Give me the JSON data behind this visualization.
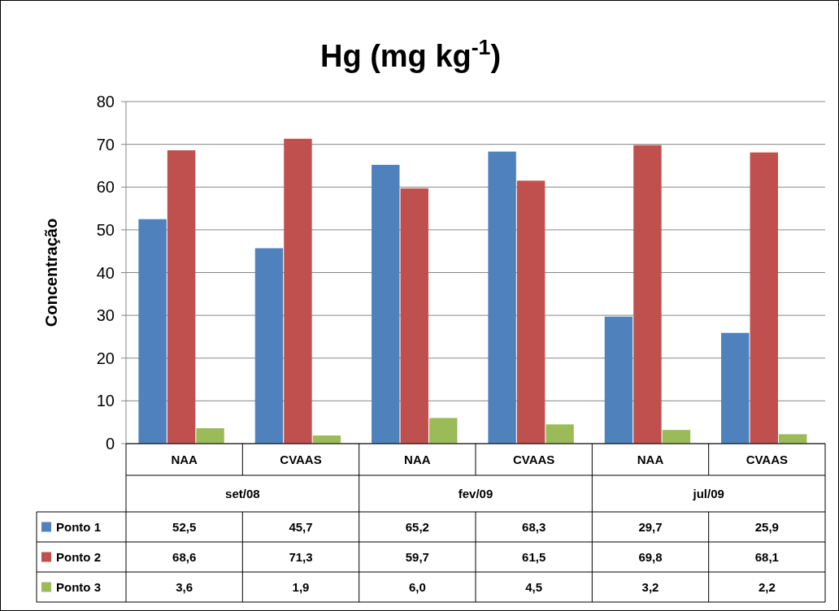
{
  "chart_data": {
    "type": "bar",
    "title": "Hg (mg kg$^{-1}$)",
    "ylabel": "Concentração",
    "categories": [
      "NAA",
      "CVAAS",
      "NAA",
      "CVAAS",
      "NAA",
      "CVAAS"
    ],
    "annotations": [
      "set/08",
      "fev/09",
      "jul/09"
    ],
    "series": [
      {
        "name": "Ponto 1",
        "color": "#4f81bd",
        "values": [
          52.5,
          45.7,
          65.2,
          68.3,
          29.7,
          25.9
        ],
        "value_labels": [
          "52,5",
          "45,7",
          "65,2",
          "68,3",
          "29,7",
          "25,9"
        ]
      },
      {
        "name": "Ponto 2",
        "color": "#c0504d",
        "values": [
          68.6,
          71.3,
          59.7,
          61.5,
          69.8,
          68.1
        ],
        "value_labels": [
          "68,6",
          "71,3",
          "59,7",
          "61,5",
          "69,8",
          "68,1"
        ]
      },
      {
        "name": "Ponto 3",
        "color": "#9bbb59",
        "values": [
          3.6,
          1.9,
          6.0,
          4.5,
          3.2,
          2.2
        ],
        "value_labels": [
          "3,6",
          "1,9",
          "6,0",
          "4,5",
          "3,2",
          "2,2"
        ]
      }
    ],
    "ylim": [
      0,
      80
    ],
    "yticks": [
      0,
      10,
      20,
      30,
      40,
      50,
      60,
      70,
      80
    ],
    "grid": "y",
    "legend": "bottom"
  }
}
